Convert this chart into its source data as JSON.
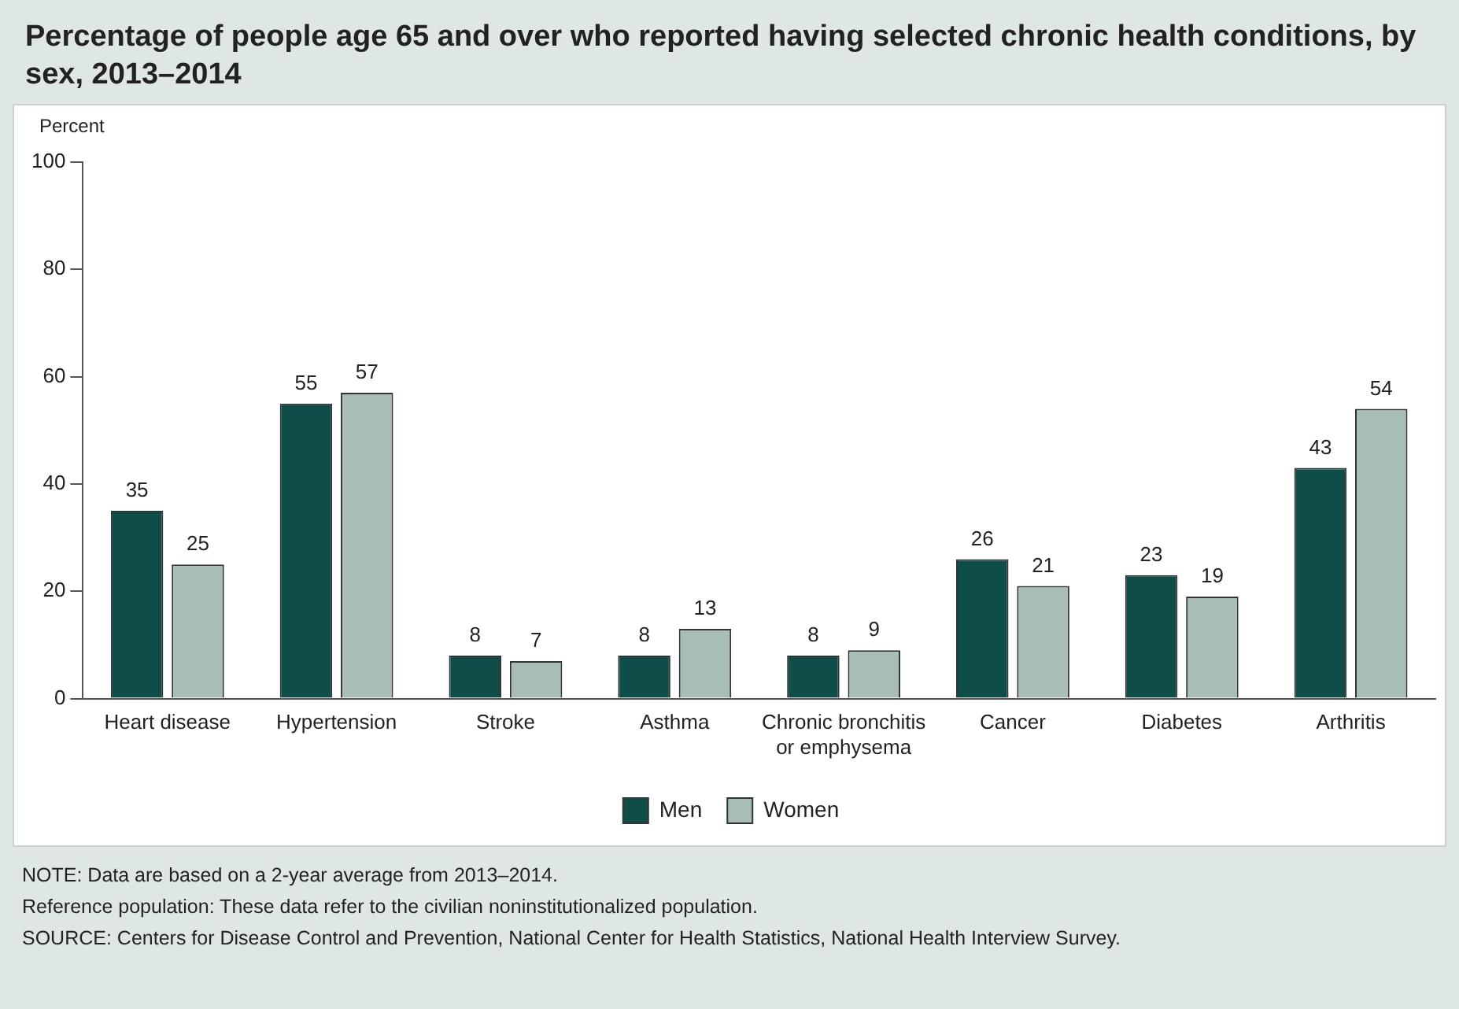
{
  "chart_data": {
    "type": "bar",
    "title": "Percentage of people age 65 and over who reported having selected chronic health conditions, by sex, 2013–2014",
    "ylabel": "Percent",
    "categories": [
      "Heart disease",
      "Hypertension",
      "Stroke",
      "Asthma",
      "Chronic bronchitis or emphysema",
      "Cancer",
      "Diabetes",
      "Arthritis"
    ],
    "series": [
      {
        "name": "Men",
        "color": "#0e4d48",
        "values": [
          35,
          55,
          8,
          8,
          8,
          26,
          23,
          43
        ]
      },
      {
        "name": "Women",
        "color": "#a8bcb8",
        "values": [
          25,
          57,
          7,
          13,
          9,
          21,
          19,
          54
        ]
      }
    ],
    "ylim": [
      0,
      100
    ],
    "yticks": [
      0,
      20,
      40,
      60,
      80,
      100
    ],
    "grid": false,
    "legend": "bottom",
    "data_labels": true,
    "annotations": [
      "NOTE: Data are based on a 2-year average from 2013–2014.",
      "Reference population: These data refer to the civilian noninstitutionalized population.",
      "SOURCE: Centers for Disease Control and Prevention, National Center for Health Statistics, National Health Interview Survey."
    ]
  }
}
